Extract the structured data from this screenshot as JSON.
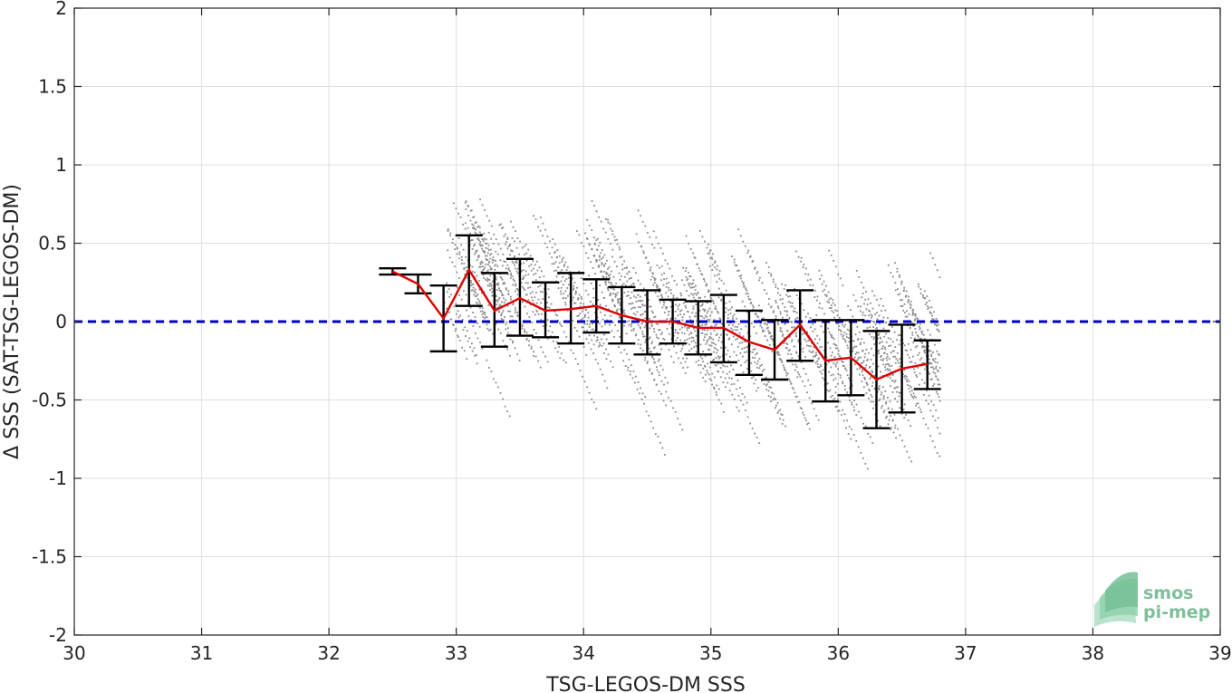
{
  "chart_data": {
    "type": "scatter",
    "title": "",
    "xlabel": "TSG-LEGOS-DM SSS",
    "ylabel": "Δ SSS (SAT-TSG-LEGOS-DM)",
    "xlim": [
      30,
      39
    ],
    "ylim": [
      -2,
      2
    ],
    "xticks": [
      30,
      31,
      32,
      33,
      34,
      35,
      36,
      37,
      38,
      39
    ],
    "yticks": [
      2,
      1.5,
      1,
      0.5,
      0,
      -0.5,
      -1,
      -1.5,
      -2
    ],
    "xtick_labels": [
      "30",
      "31",
      "32",
      "33",
      "34",
      "35",
      "36",
      "37",
      "38",
      "39"
    ],
    "ytick_labels": [
      "2",
      "1.5",
      "1",
      "0.5",
      "0",
      "-0.5",
      "-1",
      "-1.5",
      "-2"
    ],
    "grid": true,
    "reference_line": {
      "y": 0,
      "style": "dashed",
      "color": "#0000cc"
    },
    "scatter": {
      "color": "#8c8c8c",
      "description_range": {
        "x": [
          32.9,
          36.8
        ],
        "trend_slope": -0.18,
        "spread": 0.25
      }
    },
    "series": [
      {
        "type": "line",
        "color": "#e00000",
        "x": [
          32.5,
          32.7,
          32.9,
          33.1,
          33.3,
          33.5,
          33.7,
          33.9,
          34.1,
          34.3,
          34.5,
          34.7,
          34.9,
          35.1,
          35.3,
          35.5,
          35.7,
          35.9,
          36.1,
          36.3,
          36.5,
          36.7
        ],
        "y": [
          0.32,
          0.24,
          0.02,
          0.33,
          0.07,
          0.15,
          0.07,
          0.08,
          0.1,
          0.04,
          0.0,
          0.0,
          -0.04,
          -0.04,
          -0.13,
          -0.18,
          -0.02,
          -0.25,
          -0.23,
          -0.37,
          -0.3,
          -0.27
        ],
        "y_low": [
          0.3,
          0.18,
          -0.19,
          0.1,
          -0.16,
          -0.09,
          -0.1,
          -0.14,
          -0.07,
          -0.14,
          -0.21,
          -0.14,
          -0.21,
          -0.26,
          -0.34,
          -0.37,
          -0.25,
          -0.51,
          -0.47,
          -0.68,
          -0.58,
          -0.43
        ],
        "y_high": [
          0.34,
          0.3,
          0.23,
          0.55,
          0.31,
          0.4,
          0.25,
          0.31,
          0.27,
          0.22,
          0.2,
          0.14,
          0.13,
          0.17,
          0.07,
          0.01,
          0.2,
          0.01,
          0.01,
          -0.06,
          -0.02,
          -0.12
        ]
      }
    ]
  },
  "logo": {
    "line1": "smos",
    "line2": "pi-mep",
    "color": "#7fbf9a"
  }
}
